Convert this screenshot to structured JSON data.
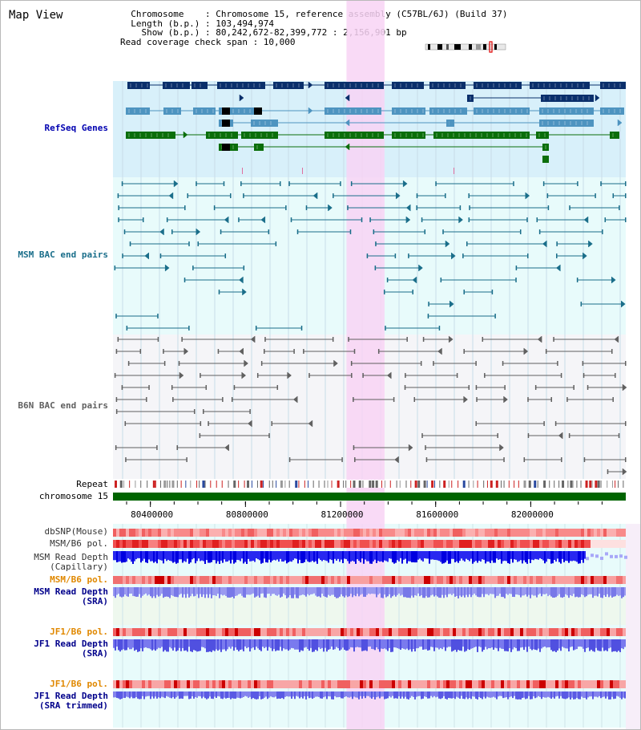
{
  "header": {
    "title": "Map View",
    "info_lines": [
      "  Chromosome    : Chromosome 15, reference assembly (C57BL/6J) (Build 37)",
      "  Length (b.p.) : 103,494,974",
      "    Show (b.p.) : 80,242,672-82,399,772 : 2,156,901 bp",
      "Read coverage check span : 10,000"
    ]
  },
  "tracks": {
    "refseq": "RefSeq Genes",
    "msm_bac": "MSM BAC end pairs",
    "b6n_bac": "B6N BAC end pairs",
    "repeat": "Repeat",
    "chromosome": "chromosome 15",
    "dbsnp": "dbSNP(Mouse)",
    "msm_b6_pol": "MSM/B6 pol.",
    "msm_depth_cap_1": "MSM Read Depth",
    "msm_depth_cap_2": "(Capillary)",
    "msm_b6_pol_sra": "MSM/B6 pol.",
    "msm_depth_sra_1": "MSM Read Depth",
    "msm_depth_sra_2": "(SRA)",
    "jf1_pol": "JF1/B6 pol.",
    "jf1_depth_1": "JF1 Read Depth",
    "jf1_depth_2": "(SRA)",
    "jf1_pol_trim": "JF1/B6 pol.",
    "jf1_trim_1": "JF1 Read Depth",
    "jf1_trim_2": "(SRA trimmed)"
  },
  "axis": {
    "ticks": [
      {
        "label": "80400000",
        "value": 80400000
      },
      {
        "label": "80800000",
        "value": 80800000
      },
      {
        "label": "81200000",
        "value": 81200000
      },
      {
        "label": "81600000",
        "value": 81600000
      },
      {
        "label": "82000000",
        "value": 82000000
      }
    ],
    "range": [
      80242672,
      82399772
    ],
    "highlight_range": [
      81225000,
      81385000
    ]
  },
  "colors": {
    "refseq_bg": "#d8f0fa",
    "msm_bg": "#e8fbfb",
    "b6n_bg": "#f5f5f8",
    "highlight": "#f8d4f4",
    "dark_gene": "#0a2f6b",
    "mid_gene": "#4e94c0",
    "green_gene": "#0a6e0a",
    "msm_line": "#1a6e8a",
    "b6n_line": "#606060",
    "chromosome": "#006400",
    "label_blue": "#0000b0",
    "label_teal": "#1a6e8a",
    "label_gray": "#606060",
    "label_orange": "#e08800",
    "label_navy": "#00008b"
  }
}
